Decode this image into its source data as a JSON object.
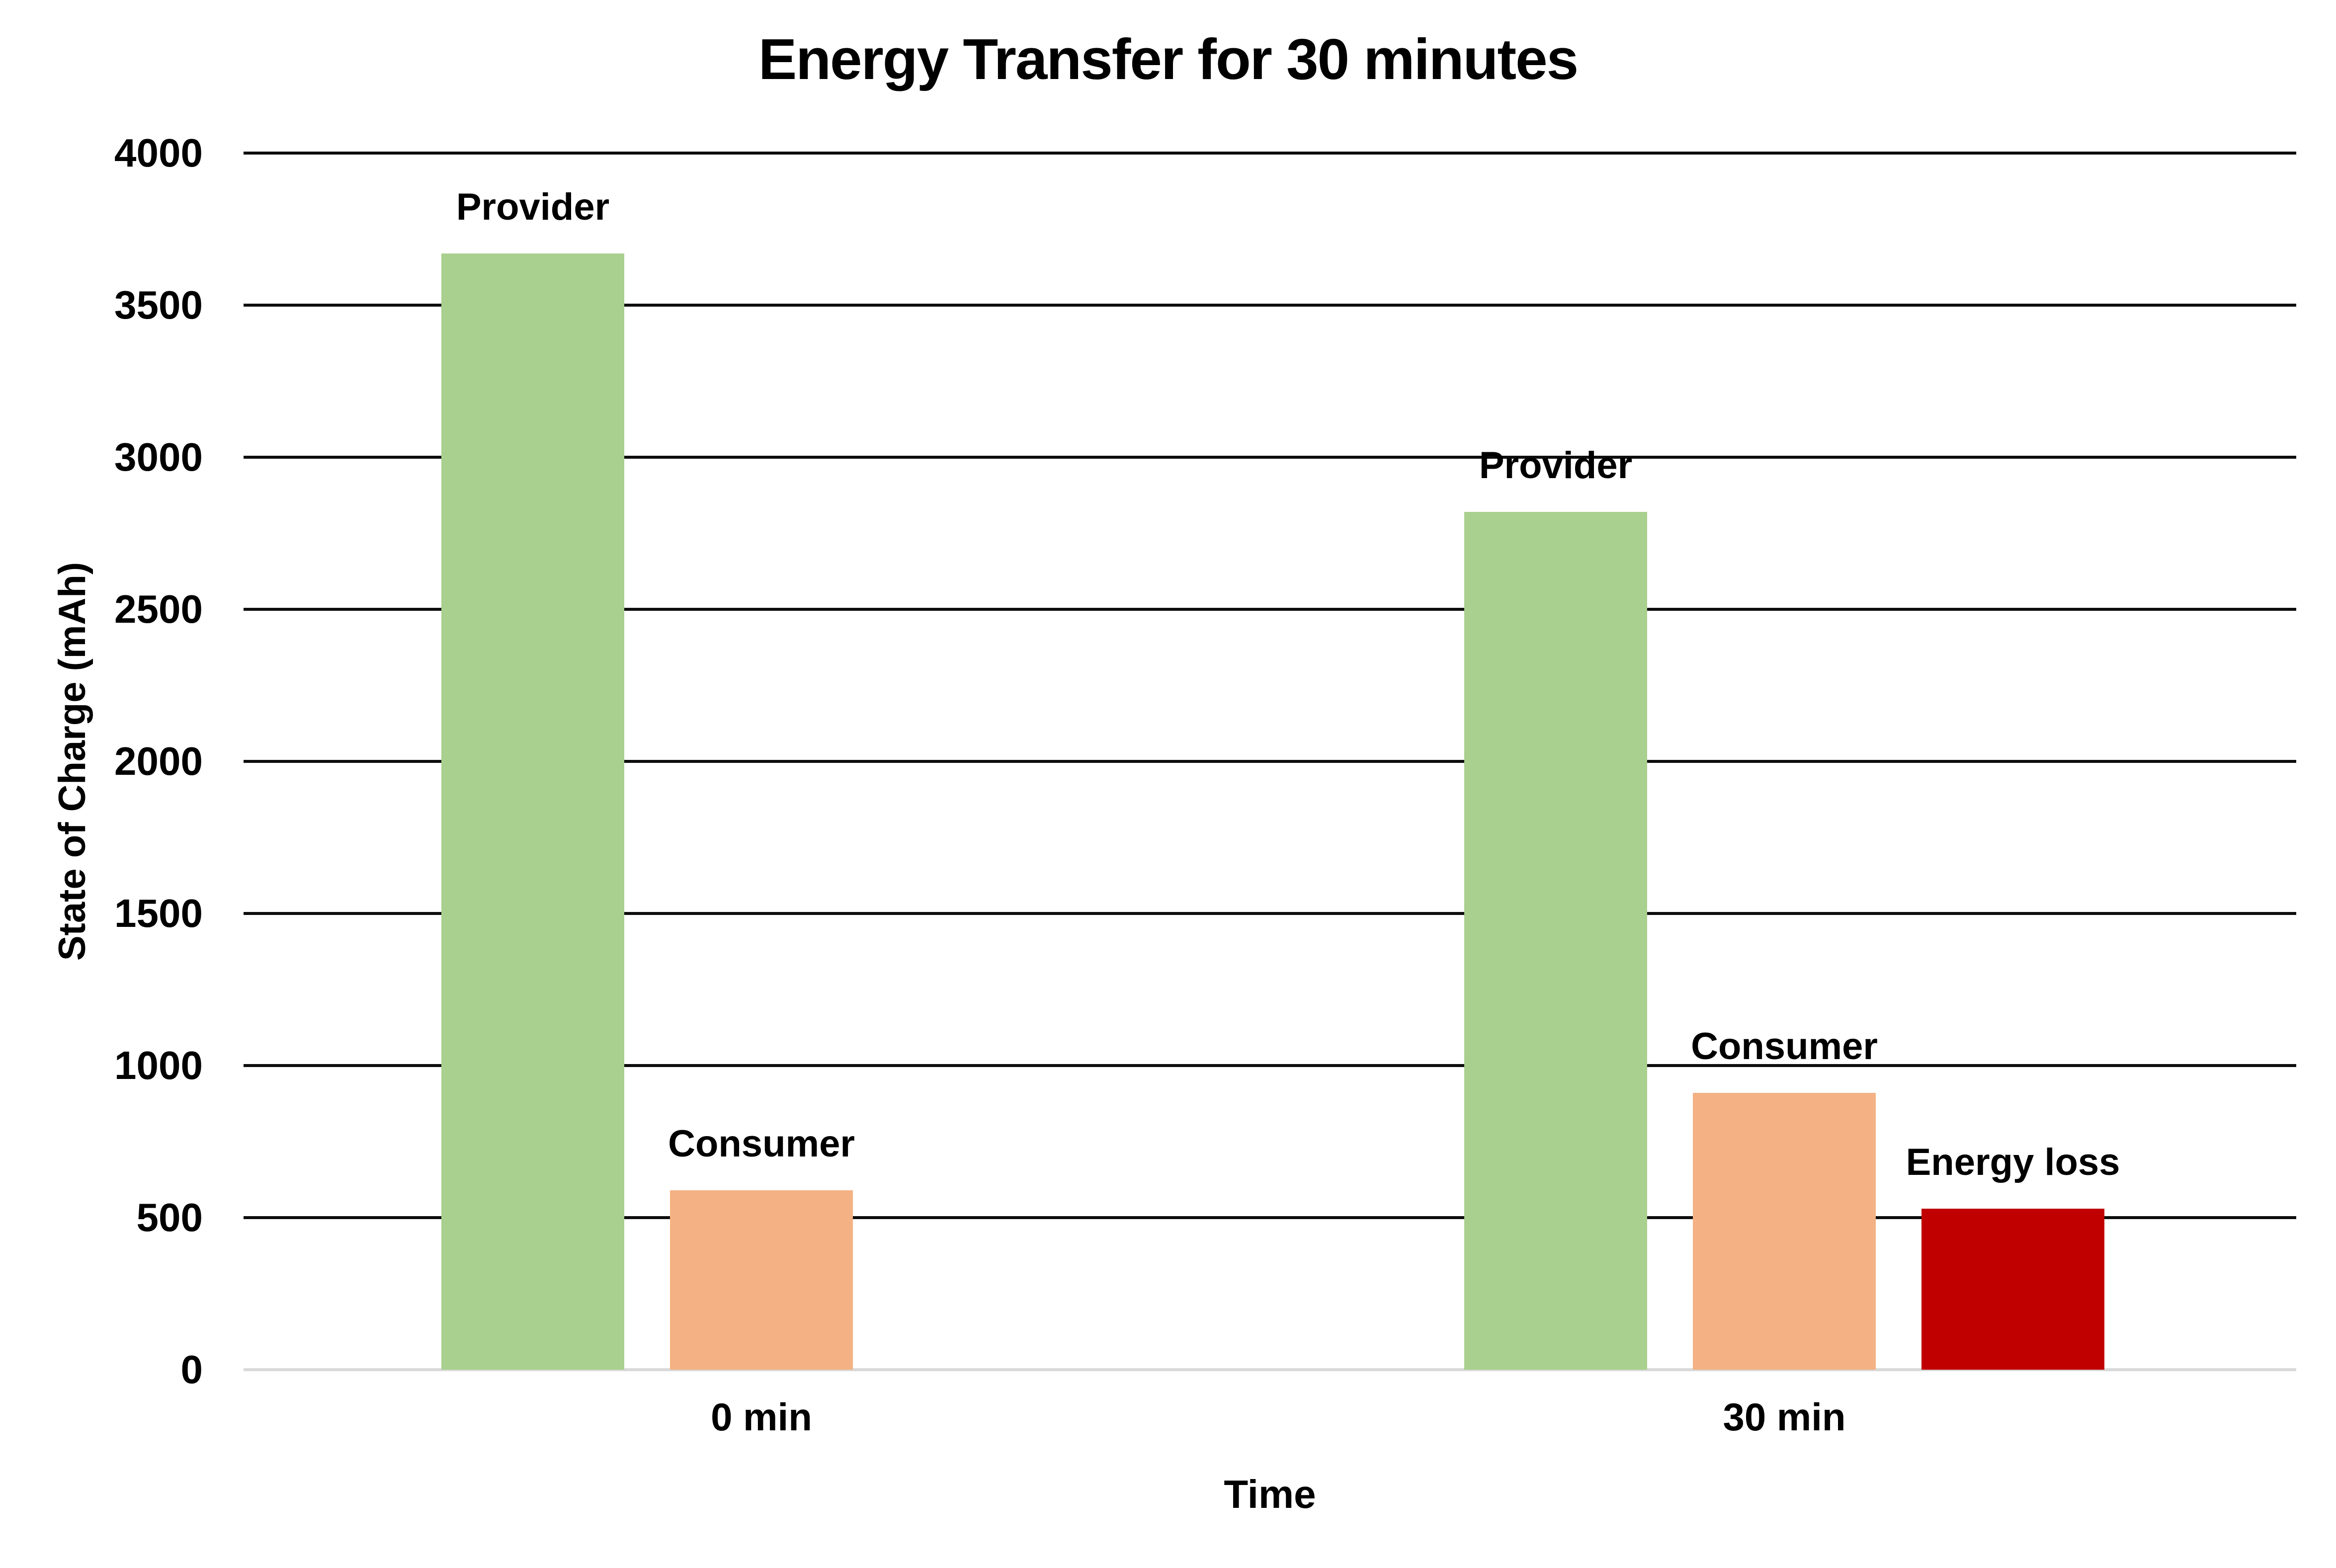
{
  "title": "Energy Transfer for 30 minutes",
  "chart_data": {
    "type": "bar",
    "title": "Energy Transfer for 30 minutes",
    "xlabel": "Time",
    "ylabel": "State of Charge (mAh)",
    "ylim": [
      0,
      4000
    ],
    "ytick_step": 500,
    "ytick_labels": [
      "0",
      "500",
      "1000",
      "1500",
      "2000",
      "2500",
      "3000",
      "3500",
      "4000"
    ],
    "categories": [
      "0 min",
      "30 min"
    ],
    "series": [
      {
        "name": "Provider",
        "color": "#A9D08E",
        "values": [
          3670,
          2820
        ]
      },
      {
        "name": "Consumer",
        "color": "#F4B183",
        "values": [
          590,
          910
        ]
      },
      {
        "name": "Energy loss",
        "color": "#C00000",
        "values": [
          null,
          530
        ]
      }
    ],
    "bar_value_labels_shown": false,
    "series_name_labels_above_bars": true,
    "legend": "none",
    "grid": "horizontal",
    "gridline_color": "#0d0d0d",
    "zero_axis_line_color": "#d9d9d9",
    "background_color": "#ffffff",
    "text_color": "#000000"
  }
}
